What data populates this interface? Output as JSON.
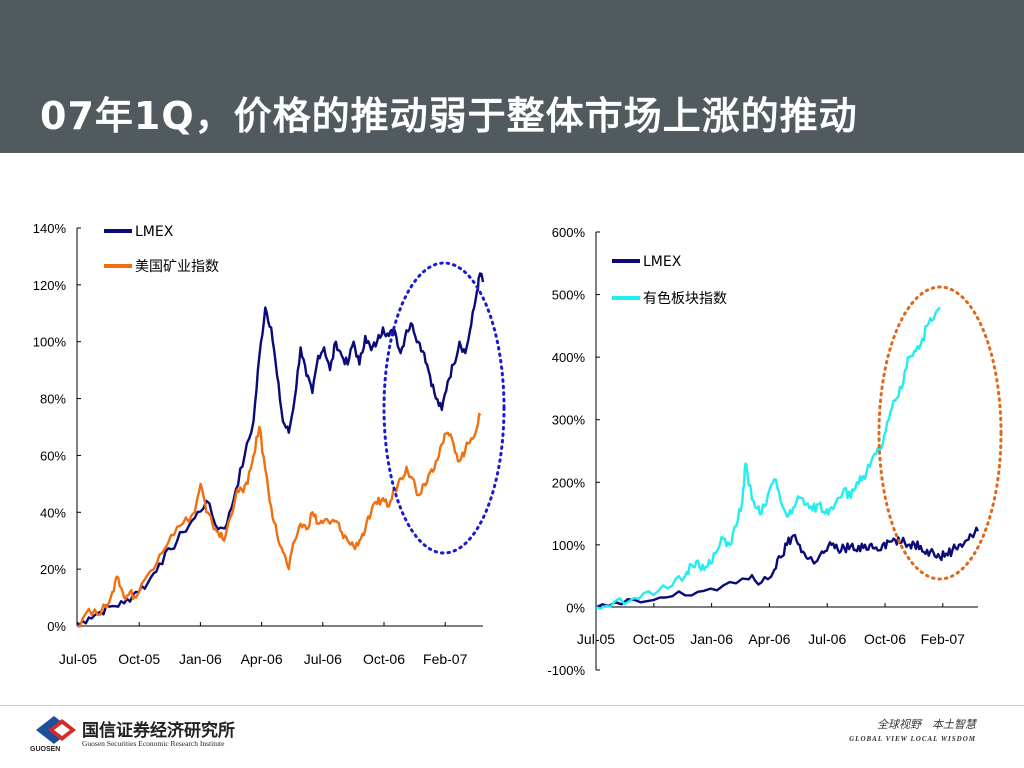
{
  "slide": {
    "title": "07年1Q，价格的推动弱于整体市场上涨的推动"
  },
  "colors": {
    "header_bg": "#505a5f",
    "lmex": "#0a0a78",
    "us_mining": "#f07010",
    "nonferrous": "#22eef0",
    "highlight_left": "#1a1ad0",
    "highlight_right": "#e06818"
  },
  "chart_data": [
    {
      "type": "line",
      "x_ticks": [
        "Jul-05",
        "Oct-05",
        "Jan-06",
        "Apr-06",
        "Jul-06",
        "Oct-06",
        "Feb-07"
      ],
      "y_ticks": [
        "0%",
        "20%",
        "40%",
        "60%",
        "80%",
        "100%",
        "120%",
        "140%"
      ],
      "ylim": [
        0,
        140
      ],
      "y_unit": "%",
      "legend_position": "top-left",
      "grid": false,
      "annotation": "dotted ellipse highlighting Oct-06 to Mar-07",
      "series": [
        {
          "name": "LMEX",
          "color": "#0a0a78",
          "points": [
            [
              0,
              0
            ],
            [
              4,
              3
            ],
            [
              8,
              5
            ],
            [
              12,
              7
            ],
            [
              16,
              8
            ],
            [
              20,
              12
            ],
            [
              24,
              15
            ],
            [
              28,
              22
            ],
            [
              32,
              27
            ],
            [
              36,
              33
            ],
            [
              40,
              38
            ],
            [
              44,
              44
            ],
            [
              48,
              34
            ],
            [
              51,
              36
            ],
            [
              54,
              48
            ],
            [
              57,
              60
            ],
            [
              60,
              72
            ],
            [
              62,
              95
            ],
            [
              64,
              112
            ],
            [
              66,
              105
            ],
            [
              68,
              88
            ],
            [
              70,
              72
            ],
            [
              72,
              68
            ],
            [
              74,
              80
            ],
            [
              76,
              98
            ],
            [
              78,
              88
            ],
            [
              80,
              82
            ],
            [
              82,
              95
            ],
            [
              84,
              98
            ],
            [
              86,
              90
            ],
            [
              88,
              100
            ],
            [
              90,
              95
            ],
            [
              92,
              92
            ],
            [
              94,
              100
            ],
            [
              96,
              92
            ],
            [
              98,
              102
            ],
            [
              100,
              97
            ],
            [
              102,
              100
            ],
            [
              104,
              105
            ],
            [
              106,
              102
            ],
            [
              108,
              104
            ],
            [
              110,
              96
            ],
            [
              112,
              104
            ],
            [
              114,
              106
            ],
            [
              116,
              100
            ],
            [
              118,
              96
            ],
            [
              120,
              88
            ],
            [
              122,
              80
            ],
            [
              124,
              76
            ],
            [
              126,
              86
            ],
            [
              128,
              92
            ],
            [
              130,
              100
            ],
            [
              132,
              96
            ],
            [
              134,
              106
            ],
            [
              136,
              118
            ],
            [
              137,
              124
            ],
            [
              138,
              121
            ]
          ]
        },
        {
          "name": "美国矿业指数",
          "color": "#f07010",
          "points": [
            [
              0,
              0
            ],
            [
              4,
              6
            ],
            [
              8,
              4
            ],
            [
              12,
              12
            ],
            [
              14,
              17
            ],
            [
              16,
              10
            ],
            [
              18,
              12
            ],
            [
              20,
              10
            ],
            [
              24,
              18
            ],
            [
              28,
              25
            ],
            [
              32,
              32
            ],
            [
              36,
              36
            ],
            [
              40,
              40
            ],
            [
              42,
              50
            ],
            [
              44,
              40
            ],
            [
              46,
              36
            ],
            [
              48,
              33
            ],
            [
              50,
              30
            ],
            [
              52,
              38
            ],
            [
              54,
              46
            ],
            [
              56,
              48
            ],
            [
              58,
              50
            ],
            [
              60,
              60
            ],
            [
              62,
              70
            ],
            [
              64,
              55
            ],
            [
              66,
              42
            ],
            [
              68,
              32
            ],
            [
              70,
              26
            ],
            [
              72,
              20
            ],
            [
              74,
              30
            ],
            [
              76,
              36
            ],
            [
              78,
              34
            ],
            [
              80,
              40
            ],
            [
              82,
              36
            ],
            [
              84,
              37
            ],
            [
              86,
              36
            ],
            [
              88,
              37
            ],
            [
              90,
              33
            ],
            [
              92,
              30
            ],
            [
              94,
              28
            ],
            [
              96,
              30
            ],
            [
              98,
              34
            ],
            [
              100,
              40
            ],
            [
              102,
              43
            ],
            [
              104,
              45
            ],
            [
              106,
              42
            ],
            [
              108,
              48
            ],
            [
              110,
              52
            ],
            [
              112,
              56
            ],
            [
              114,
              52
            ],
            [
              116,
              46
            ],
            [
              118,
              50
            ],
            [
              120,
              54
            ],
            [
              122,
              58
            ],
            [
              124,
              64
            ],
            [
              126,
              68
            ],
            [
              128,
              64
            ],
            [
              130,
              58
            ],
            [
              132,
              62
            ],
            [
              134,
              66
            ],
            [
              136,
              70
            ],
            [
              137,
              74
            ]
          ]
        }
      ]
    },
    {
      "type": "line",
      "x_ticks": [
        "Jul-05",
        "Oct-05",
        "Jan-06",
        "Apr-06",
        "Jul-06",
        "Oct-06",
        "Feb-07"
      ],
      "y_ticks": [
        "-100%",
        "0%",
        "100%",
        "200%",
        "300%",
        "400%",
        "500%",
        "600%"
      ],
      "ylim": [
        -100,
        600
      ],
      "y_unit": "%",
      "legend_position": "top-left",
      "grid": false,
      "annotation": "dotted ellipse highlighting Oct-06 to Mar-07",
      "series": [
        {
          "name": "LMEX",
          "color": "#0a0a78",
          "points": [
            [
              0,
              0
            ],
            [
              8,
              5
            ],
            [
              16,
              10
            ],
            [
              24,
              18
            ],
            [
              32,
              25
            ],
            [
              40,
              35
            ],
            [
              48,
              45
            ],
            [
              52,
              40
            ],
            [
              56,
              60
            ],
            [
              58,
              80
            ],
            [
              60,
              100
            ],
            [
              62,
              115
            ],
            [
              64,
              100
            ],
            [
              66,
              80
            ],
            [
              68,
              75
            ],
            [
              70,
              80
            ],
            [
              72,
              90
            ],
            [
              74,
              100
            ],
            [
              76,
              92
            ],
            [
              78,
              95
            ],
            [
              80,
              98
            ],
            [
              82,
              90
            ],
            [
              84,
              95
            ],
            [
              86,
              100
            ],
            [
              88,
              96
            ],
            [
              90,
              100
            ],
            [
              92,
              105
            ],
            [
              94,
              108
            ],
            [
              96,
              104
            ],
            [
              98,
              100
            ],
            [
              100,
              102
            ],
            [
              102,
              98
            ],
            [
              104,
              92
            ],
            [
              106,
              88
            ],
            [
              108,
              80
            ],
            [
              110,
              86
            ],
            [
              112,
              92
            ],
            [
              114,
              100
            ],
            [
              116,
              106
            ],
            [
              118,
              115
            ],
            [
              120,
              122
            ]
          ]
        },
        {
          "name": "有色板块指数",
          "color": "#22eef0",
          "points": [
            [
              0,
              0
            ],
            [
              6,
              10
            ],
            [
              12,
              15
            ],
            [
              18,
              20
            ],
            [
              24,
              35
            ],
            [
              28,
              50
            ],
            [
              30,
              68
            ],
            [
              32,
              75
            ],
            [
              34,
              60
            ],
            [
              36,
              70
            ],
            [
              38,
              90
            ],
            [
              40,
              110
            ],
            [
              42,
              100
            ],
            [
              44,
              130
            ],
            [
              46,
              170
            ],
            [
              47,
              230
            ],
            [
              48,
              195
            ],
            [
              50,
              160
            ],
            [
              52,
              150
            ],
            [
              54,
              180
            ],
            [
              56,
              205
            ],
            [
              58,
              170
            ],
            [
              60,
              145
            ],
            [
              62,
              160
            ],
            [
              64,
              175
            ],
            [
              66,
              165
            ],
            [
              68,
              155
            ],
            [
              70,
              165
            ],
            [
              72,
              150
            ],
            [
              74,
              160
            ],
            [
              76,
              175
            ],
            [
              78,
              190
            ],
            [
              80,
              175
            ],
            [
              82,
              200
            ],
            [
              84,
              210
            ],
            [
              86,
              225
            ],
            [
              88,
              245
            ],
            [
              90,
              260
            ],
            [
              92,
              300
            ],
            [
              94,
              330
            ],
            [
              96,
              350
            ],
            [
              98,
              400
            ],
            [
              100,
              410
            ],
            [
              102,
              420
            ],
            [
              104,
              450
            ],
            [
              106,
              460
            ],
            [
              108,
              480
            ]
          ]
        }
      ]
    }
  ],
  "footer": {
    "org_name": "国信证券经济研究所",
    "org_name_en": "Guosen Securities Economic Research Institute",
    "logo_text": "GUOSEN",
    "slogan_cn": "全球视野　本土智慧",
    "slogan_en": "GLOBAL VIEW   LOCAL WISDOM"
  }
}
